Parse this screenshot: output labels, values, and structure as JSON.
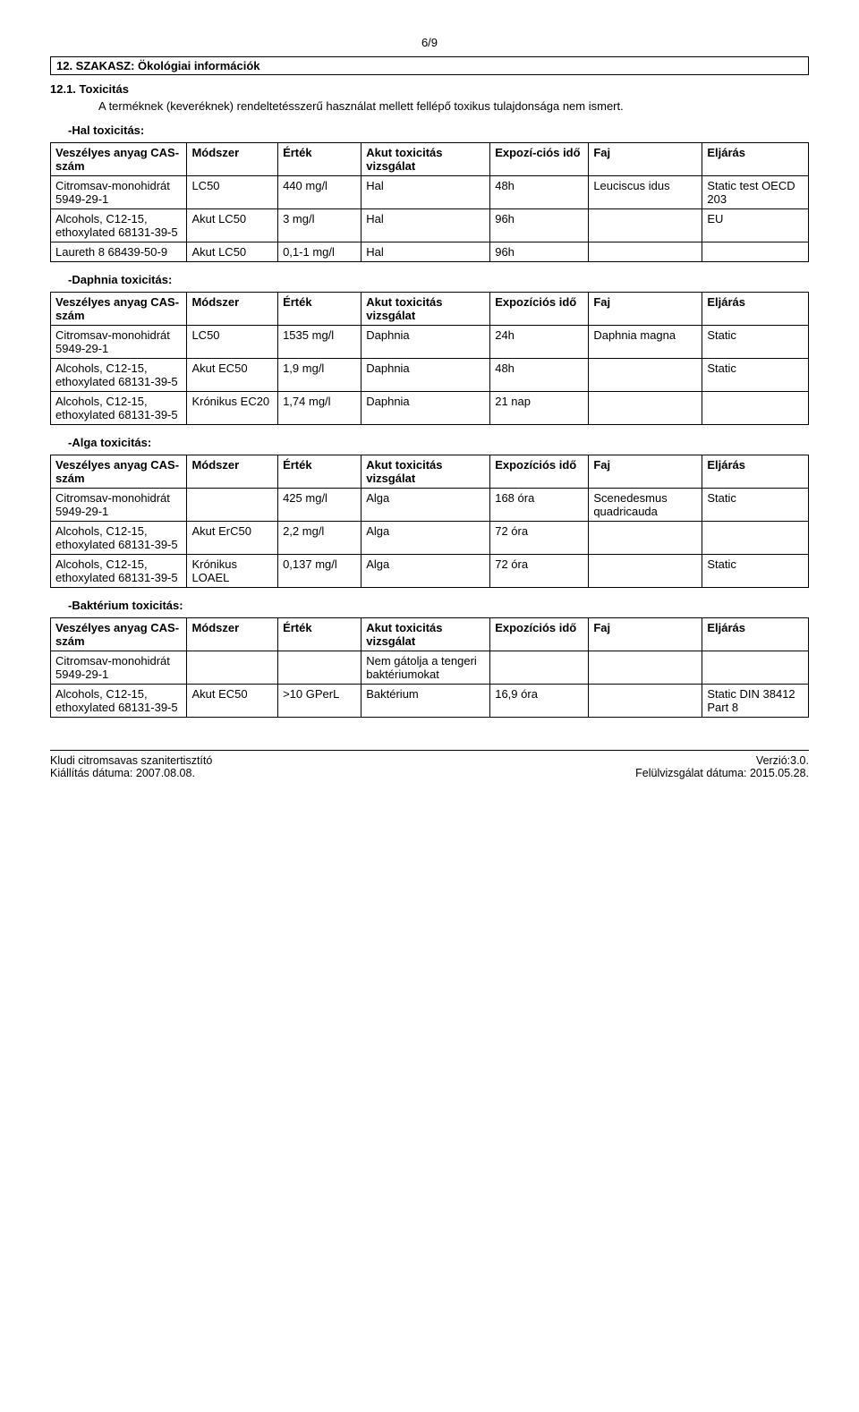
{
  "page_num": "6/9",
  "section_title": "12. SZAKASZ: Ökológiai információk",
  "section_sub_no": "12.1.",
  "section_sub_title": "Toxicitás",
  "section_sub_text": "A terméknek (keveréknek) rendeltetésszerű használat mellett fellépő toxikus tulajdonsága nem ismert.",
  "fish_label": "-Hal toxicitás:",
  "daphnia_label": "-Daphnia toxicitás:",
  "alga_label": "-Alga toxicitás:",
  "bacteria_label": "-Baktérium toxicitás:",
  "headers": {
    "hazardous": "Veszélyes anyag CAS-szám",
    "method": "Módszer",
    "value": "Érték",
    "acute_test": "Akut toxicitás vizsgálat",
    "exp_time_split": "Expozí-ciós idő",
    "exp_time": "Expozíciós idő",
    "species": "Faj",
    "procedure": "Eljárás"
  },
  "fish": {
    "rows": [
      {
        "c0": "Citromsav-monohidrát 5949-29-1",
        "c1": "LC50",
        "c2": "440 mg/l",
        "c3": "Hal",
        "c4": "48h",
        "c5": "Leuciscus idus",
        "c6": "Static test OECD 203"
      },
      {
        "c0": "Alcohols, C12-15, ethoxylated 68131-39-5",
        "c1": "Akut LC50",
        "c2": "3 mg/l",
        "c3": "Hal",
        "c4": "96h",
        "c5": "",
        "c6": "EU"
      },
      {
        "c0": "Laureth 8 68439-50-9",
        "c1": "Akut LC50",
        "c2": "0,1-1 mg/l",
        "c3": "Hal",
        "c4": "96h",
        "c5": "",
        "c6": ""
      }
    ]
  },
  "daphnia": {
    "rows": [
      {
        "c0": "Citromsav-monohidrát 5949-29-1",
        "c1": "LC50",
        "c2": "1535 mg/l",
        "c3": "Daphnia",
        "c4": "24h",
        "c5": "Daphnia magna",
        "c6": "Static"
      },
      {
        "c0": "Alcohols, C12-15, ethoxylated 68131-39-5",
        "c1": "Akut EC50",
        "c2": "1,9 mg/l",
        "c3": "Daphnia",
        "c4": "48h",
        "c5": "",
        "c6": "Static"
      },
      {
        "c0": "Alcohols, C12-15, ethoxylated 68131-39-5",
        "c1": "Krónikus EC20",
        "c2": "1,74 mg/l",
        "c3": "Daphnia",
        "c4": "21 nap",
        "c5": "",
        "c6": ""
      }
    ]
  },
  "alga": {
    "rows": [
      {
        "c0": "Citromsav-monohidrát 5949-29-1",
        "c1": "",
        "c2": "425 mg/l",
        "c3": "Alga",
        "c4": "168 óra",
        "c5": "Scenedesmus quadricauda",
        "c6": "Static"
      },
      {
        "c0": "Alcohols, C12-15, ethoxylated 68131-39-5",
        "c1": "Akut ErC50",
        "c2": "2,2 mg/l",
        "c3": "Alga",
        "c4": "72 óra",
        "c5": "",
        "c6": ""
      },
      {
        "c0": "Alcohols, C12-15, ethoxylated 68131-39-5",
        "c1": "Krónikus LOAEL",
        "c2": "0,137 mg/l",
        "c3": "Alga",
        "c4": "72 óra",
        "c5": "",
        "c6": "Static"
      }
    ]
  },
  "bacteria": {
    "rows": [
      {
        "c0": "Citromsav-monohidrát 5949-29-1",
        "c1": "",
        "c2": "",
        "c3": "Nem gátolja a tengeri baktériumokat",
        "c4": "",
        "c5": "",
        "c6": ""
      },
      {
        "c0": "Alcohols, C12-15, ethoxylated 68131-39-5",
        "c1": "Akut EC50",
        "c2": ">10 GPerL",
        "c3": "Baktérium",
        "c4": "16,9 óra",
        "c5": "",
        "c6": "Static DIN 38412 Part 8"
      }
    ]
  },
  "col_widths": [
    "18%",
    "12%",
    "11%",
    "17%",
    "13%",
    "15%",
    "14%"
  ],
  "footer": {
    "l1": "Kludi citromsavas szanitertisztító",
    "l2": "Kiállítás dátuma: 2007.08.08.",
    "r1": "Verzió:3.0.",
    "r2": "Felülvizsgálat dátuma: 2015.05.28."
  }
}
